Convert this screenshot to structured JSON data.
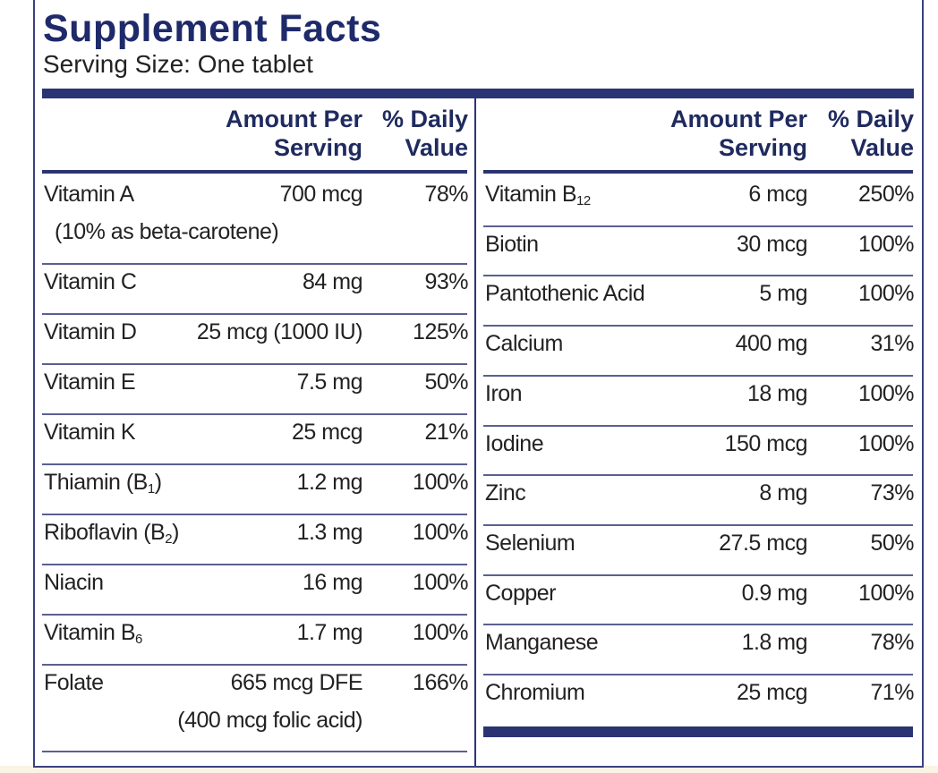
{
  "header": {
    "title": "Supplement Facts",
    "serving_size": "Serving Size: One tablet"
  },
  "columns": [
    {
      "header": {
        "amount": [
          "Amount Per",
          "Serving"
        ],
        "daily_value": [
          "% Daily",
          "Value"
        ]
      },
      "rows": [
        {
          "name": "Vitamin A",
          "note": "(10% as beta-carotene)",
          "amount": "700 mcg",
          "daily_value": "78%"
        },
        {
          "name": "Vitamin C",
          "amount": "84 mg",
          "daily_value": "93%"
        },
        {
          "name": "Vitamin D",
          "amount": "25 mcg (1000 IU)",
          "daily_value": "125%"
        },
        {
          "name": "Vitamin E",
          "amount": "7.5 mg",
          "daily_value": "50%"
        },
        {
          "name": "Vitamin K",
          "amount": "25 mcg",
          "daily_value": "21%"
        },
        {
          "name": "Thiamin (B",
          "sub": "1",
          "tail": ")",
          "amount": "1.2 mg",
          "daily_value": "100%"
        },
        {
          "name": "Riboflavin (B",
          "sub": "2",
          "tail": ")",
          "amount": "1.3 mg",
          "daily_value": "100%"
        },
        {
          "name": "Niacin",
          "amount": "16 mg",
          "daily_value": "100%"
        },
        {
          "name": "Vitamin B",
          "sub": "6",
          "amount": "1.7 mg",
          "daily_value": "100%"
        },
        {
          "name": "Folate",
          "amount": "665 mcg DFE",
          "amount_note": "(400 mcg folic acid)",
          "daily_value": "166%"
        }
      ]
    },
    {
      "header": {
        "amount": [
          "Amount Per",
          "Serving"
        ],
        "daily_value": [
          "% Daily",
          "Value"
        ]
      },
      "rows": [
        {
          "name": "Vitamin B",
          "sub": "12",
          "amount": "6 mcg",
          "daily_value": "250%"
        },
        {
          "name": "Biotin",
          "amount": "30 mcg",
          "daily_value": "100%"
        },
        {
          "name": "Pantothenic Acid",
          "amount": "5 mg",
          "daily_value": "100%"
        },
        {
          "name": "Calcium",
          "amount": "400 mg",
          "daily_value": "31%"
        },
        {
          "name": "Iron",
          "amount": "18 mg",
          "daily_value": "100%"
        },
        {
          "name": "Iodine",
          "amount": "150 mcg",
          "daily_value": "100%"
        },
        {
          "name": "Zinc",
          "amount": "8 mg",
          "daily_value": "73%"
        },
        {
          "name": "Selenium",
          "amount": "27.5 mcg",
          "daily_value": "50%"
        },
        {
          "name": "Copper",
          "amount": "0.9 mg",
          "daily_value": "100%"
        },
        {
          "name": "Manganese",
          "amount": "1.8 mg",
          "daily_value": "78%"
        },
        {
          "name": "Chromium",
          "amount": "25 mcg",
          "daily_value": "71%"
        }
      ]
    }
  ]
}
